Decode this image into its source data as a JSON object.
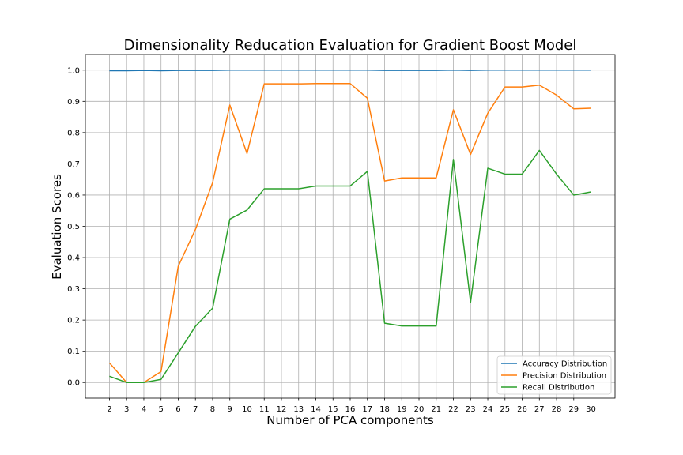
{
  "chart_data": {
    "type": "line",
    "title": "Dimensionality Reducation Evaluation for Gradient Boost Model",
    "xlabel": "Number of PCA components",
    "ylabel": "Evaluation Scores",
    "x": [
      2,
      3,
      4,
      5,
      6,
      7,
      8,
      9,
      10,
      11,
      12,
      13,
      14,
      15,
      16,
      17,
      18,
      19,
      20,
      21,
      22,
      23,
      24,
      25,
      26,
      27,
      28,
      29,
      30
    ],
    "xticks": [
      "2",
      "3",
      "4",
      "5",
      "6",
      "7",
      "8",
      "9",
      "10",
      "11",
      "12",
      "13",
      "14",
      "15",
      "16",
      "17",
      "18",
      "19",
      "20",
      "21",
      "22",
      "23",
      "24",
      "25",
      "26",
      "27",
      "28",
      "29",
      "30"
    ],
    "yticks": [
      "0.0",
      "0.1",
      "0.2",
      "0.3",
      "0.4",
      "0.5",
      "0.6",
      "0.7",
      "0.8",
      "0.9",
      "1.0"
    ],
    "xlim": [
      0.6,
      31.4
    ],
    "ylim": [
      -0.05,
      1.05
    ],
    "grid": true,
    "legend_position": "bottom-right",
    "series": [
      {
        "name": "Accuracy Distribution",
        "color": "#1f77b4",
        "values": [
          0.998,
          0.998,
          0.999,
          0.998,
          0.999,
          0.999,
          0.999,
          1.0,
          1.0,
          1.0,
          1.0,
          1.0,
          1.0,
          1.0,
          1.0,
          1.0,
          0.999,
          0.999,
          0.999,
          0.999,
          1.0,
          0.999,
          1.0,
          1.0,
          1.0,
          1.0,
          1.0,
          1.0,
          1.0
        ]
      },
      {
        "name": "Precision Distribution",
        "color": "#ff7f0e",
        "values": [
          0.063,
          0.0,
          0.0,
          0.035,
          0.372,
          0.49,
          0.64,
          0.888,
          0.733,
          0.956,
          0.956,
          0.956,
          0.957,
          0.957,
          0.957,
          0.91,
          0.645,
          0.655,
          0.655,
          0.655,
          0.873,
          0.73,
          0.862,
          0.946,
          0.946,
          0.952,
          0.92,
          0.876,
          0.878
        ]
      },
      {
        "name": "Recall Distribution",
        "color": "#2ca02c",
        "values": [
          0.02,
          0.0,
          0.0,
          0.01,
          0.095,
          0.18,
          0.238,
          0.523,
          0.552,
          0.62,
          0.62,
          0.62,
          0.629,
          0.629,
          0.629,
          0.676,
          0.19,
          0.181,
          0.181,
          0.181,
          0.714,
          0.257,
          0.686,
          0.667,
          0.667,
          0.743,
          0.667,
          0.6,
          0.61
        ]
      }
    ]
  }
}
